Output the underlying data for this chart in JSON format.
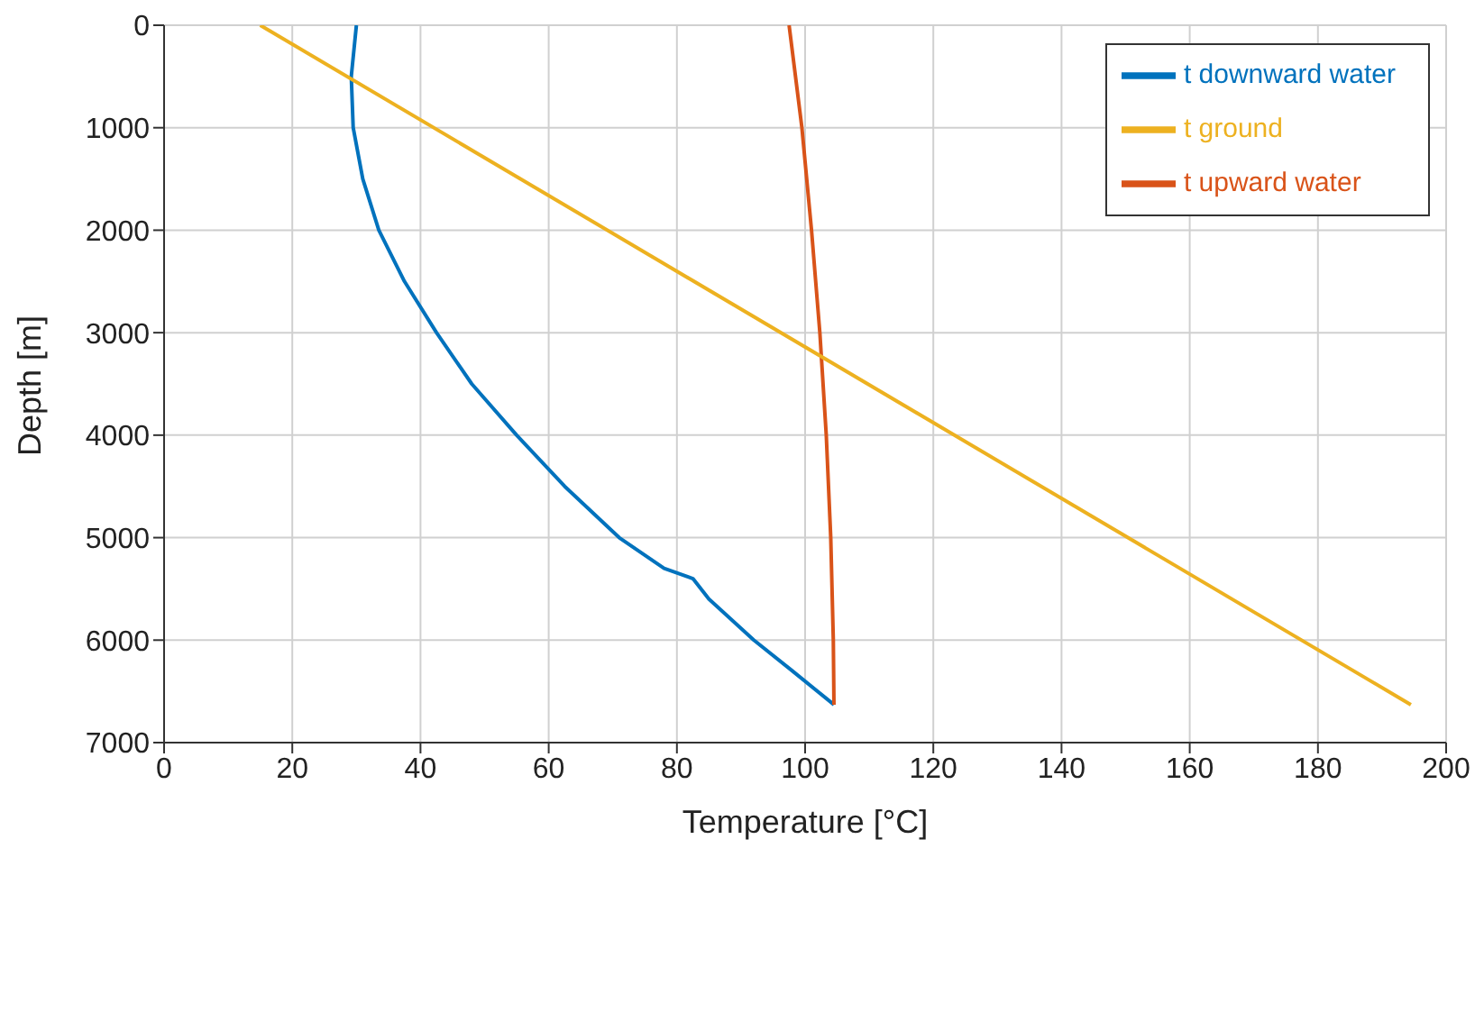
{
  "chart_data": {
    "type": "line",
    "xlabel": "Temperature [°C]",
    "ylabel": "Depth [m]",
    "xlim": [
      0,
      200
    ],
    "xticks": [
      0,
      20,
      40,
      60,
      80,
      100,
      120,
      140,
      160,
      180,
      200
    ],
    "ylim": [
      7000,
      0
    ],
    "yticks": [
      0,
      1000,
      2000,
      3000,
      4000,
      5000,
      6000,
      7000
    ],
    "grid": true,
    "legend": "top right",
    "marker": "none",
    "line_style": "solid",
    "series": [
      {
        "name": "t downward water",
        "color": "#0072bd",
        "x": [
          30,
          29.2,
          29.5,
          31,
          33.5,
          37.5,
          42.5,
          48,
          55,
          62.5,
          71,
          78,
          82.5,
          85,
          92,
          98,
          104.5
        ],
        "values": [
          0,
          500,
          1000,
          1500,
          2000,
          2500,
          3000,
          3500,
          4000,
          4500,
          5000,
          5300,
          5400,
          5600,
          6000,
          6300,
          6630
        ]
      },
      {
        "name": "t upward water",
        "color": "#d95319",
        "x": [
          97.5,
          99.5,
          101,
          102.3,
          103.3,
          104,
          104.4,
          104.5
        ],
        "values": [
          0,
          1000,
          2000,
          3000,
          4000,
          5000,
          6000,
          6630
        ]
      },
      {
        "name": "t ground",
        "color": "#edb120",
        "x": [
          15,
          194.5
        ],
        "values": [
          0,
          6630
        ]
      }
    ]
  }
}
